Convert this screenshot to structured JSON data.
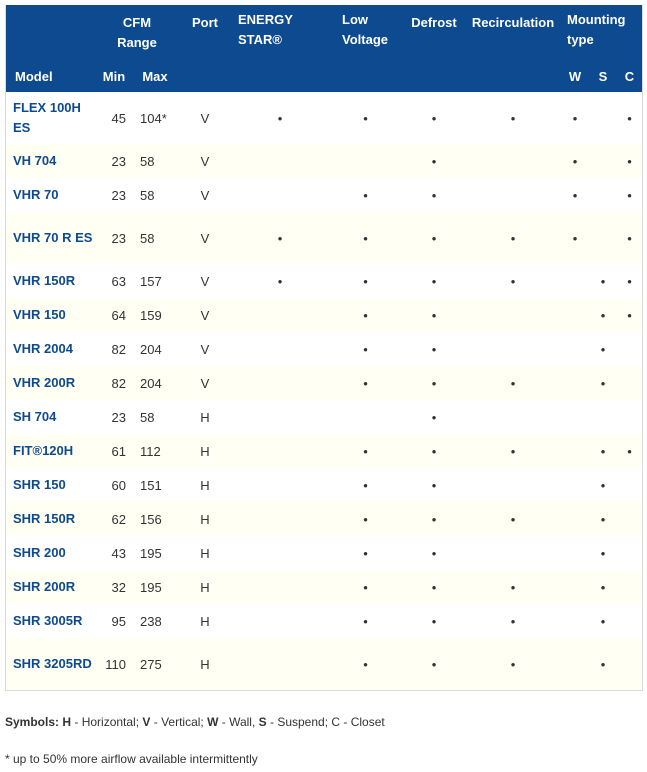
{
  "headers": {
    "cfm_range": "CFM Range",
    "port": "Port",
    "energy_star": "ENERGY STAR®",
    "low_voltage": "Low Voltage",
    "defrost": "Defrost",
    "recirculation": "Recirculation",
    "mounting_type": "Mounting type",
    "model": "Model",
    "min": "Min",
    "max": "Max",
    "wall": "W",
    "suspend": "S",
    "closet": "C"
  },
  "dot": "•",
  "rows": [
    {
      "model": "FLEX 100H ES",
      "min": "45",
      "max": "104*",
      "port": "V",
      "energy_star": "•",
      "low_voltage": "•",
      "defrost": "•",
      "recirculation": "•",
      "w": "•",
      "s": "",
      "c": "•"
    },
    {
      "model": "VH 704",
      "min": "23",
      "max": "58",
      "port": "V",
      "energy_star": "",
      "low_voltage": "",
      "defrost": "•",
      "recirculation": "",
      "w": "•",
      "s": "",
      "c": "•"
    },
    {
      "model": "VHR 70",
      "min": "23",
      "max": "58",
      "port": "V",
      "energy_star": "",
      "low_voltage": "•",
      "defrost": "•",
      "recirculation": "",
      "w": "•",
      "s": "",
      "c": "•"
    },
    {
      "model": "VHR 70 R ES",
      "min": "23",
      "max": "58",
      "port": "V",
      "energy_star": "•",
      "low_voltage": "•",
      "defrost": "•",
      "recirculation": "•",
      "w": "•",
      "s": "",
      "c": "•"
    },
    {
      "model": "VHR 150R",
      "min": "63",
      "max": "157",
      "port": "V",
      "energy_star": "•",
      "low_voltage": "•",
      "defrost": "•",
      "recirculation": "•",
      "w": "",
      "s": "•",
      "c": "•"
    },
    {
      "model": "VHR 150",
      "min": "64",
      "max": "159",
      "port": "V",
      "energy_star": "",
      "low_voltage": "•",
      "defrost": "•",
      "recirculation": "",
      "w": "",
      "s": "•",
      "c": "•"
    },
    {
      "model": "VHR 2004",
      "min": "82",
      "max": "204",
      "port": "V",
      "energy_star": "",
      "low_voltage": "•",
      "defrost": "•",
      "recirculation": "",
      "w": "",
      "s": "•",
      "c": ""
    },
    {
      "model": "VHR 200R",
      "min": "82",
      "max": "204",
      "port": "V",
      "energy_star": "",
      "low_voltage": "•",
      "defrost": "•",
      "recirculation": "•",
      "w": "",
      "s": "•",
      "c": ""
    },
    {
      "model": "SH 704",
      "min": "23",
      "max": "58",
      "port": "H",
      "energy_star": "",
      "low_voltage": "",
      "defrost": "•",
      "recirculation": "",
      "w": "",
      "s": "",
      "c": ""
    },
    {
      "model": "FIT®120H",
      "min": "61",
      "max": "112",
      "port": "H",
      "energy_star": "",
      "low_voltage": "•",
      "defrost": "•",
      "recirculation": "•",
      "w": "",
      "s": "•",
      "c": "•"
    },
    {
      "model": "SHR 150",
      "min": "60",
      "max": "151",
      "port": "H",
      "energy_star": "",
      "low_voltage": "•",
      "defrost": "•",
      "recirculation": "",
      "w": "",
      "s": "•",
      "c": ""
    },
    {
      "model": "SHR 150R",
      "min": "62",
      "max": "156",
      "port": "H",
      "energy_star": "",
      "low_voltage": "•",
      "defrost": "•",
      "recirculation": "•",
      "w": "",
      "s": "•",
      "c": ""
    },
    {
      "model": "SHR 200",
      "min": "43",
      "max": "195",
      "port": "H",
      "energy_star": "",
      "low_voltage": "•",
      "defrost": "•",
      "recirculation": "",
      "w": "",
      "s": "•",
      "c": ""
    },
    {
      "model": "SHR 200R",
      "min": "32",
      "max": "195",
      "port": "H",
      "energy_star": "",
      "low_voltage": "•",
      "defrost": "•",
      "recirculation": "•",
      "w": "",
      "s": "•",
      "c": ""
    },
    {
      "model": "SHR 3005R",
      "min": "95",
      "max": "238",
      "port": "H",
      "energy_star": "",
      "low_voltage": "•",
      "defrost": "•",
      "recirculation": "•",
      "w": "",
      "s": "•",
      "c": ""
    },
    {
      "model": "SHR 3205RD",
      "min": "110",
      "max": "275",
      "port": "H",
      "energy_star": "",
      "low_voltage": "•",
      "defrost": "•",
      "recirculation": "•",
      "w": "",
      "s": "•",
      "c": ""
    }
  ],
  "symbols": {
    "label": "Symbols:",
    "h": "H",
    "h_text": " - Horizontal; ",
    "v": "V",
    "v_text": " - Vertical; ",
    "w": "W",
    "w_text": " - Wall, ",
    "s": "S",
    "s_text": " - Suspend; C - Closet"
  },
  "footnote": "* up to 50% more airflow available intermittently",
  "colors": {
    "header_bg": "#0d4a8f",
    "model_text": "#0d4a8f",
    "stripe": "#fffff3"
  }
}
